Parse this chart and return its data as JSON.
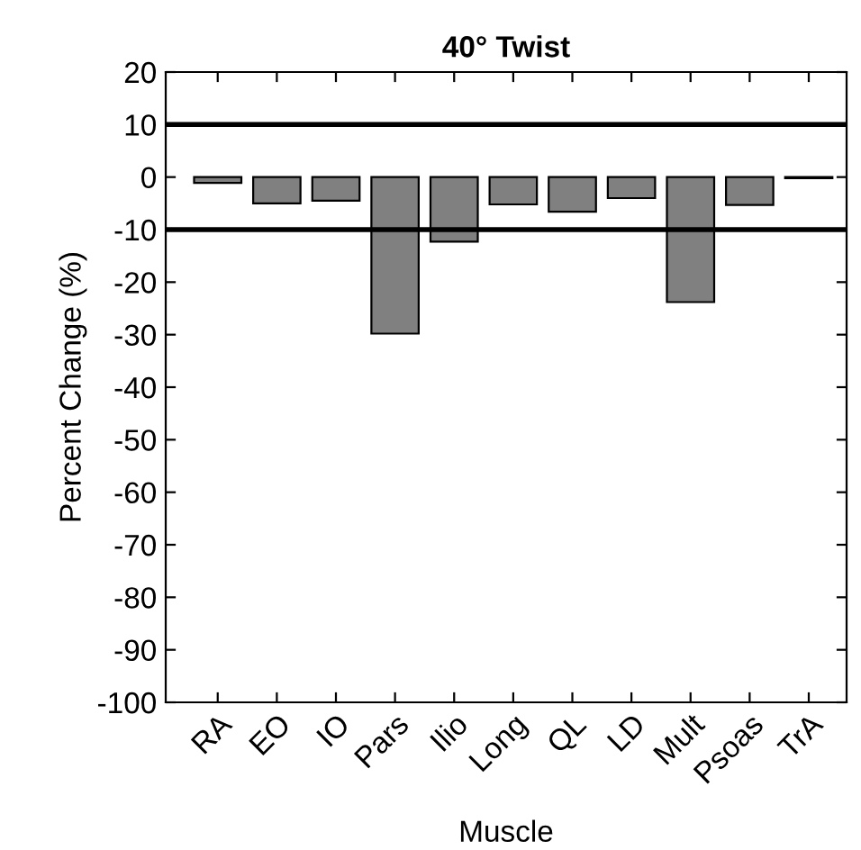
{
  "chart_data": {
    "type": "bar",
    "title": "40° Twist",
    "xlabel": "Muscle",
    "ylabel": "Percent Change (%)",
    "categories": [
      "RA",
      "EO",
      "IO",
      "Pars",
      "Ilio",
      "Long",
      "QL",
      "LD",
      "Mult",
      "Psoas",
      "TrA"
    ],
    "values": [
      -1.1,
      -5,
      -4.5,
      -29.8,
      -12.3,
      -5.2,
      -6.6,
      -4,
      -23.8,
      -5.3,
      -0.2
    ],
    "color": "#808080",
    "ylim": [
      -100,
      20
    ],
    "yticks": [
      -100,
      -90,
      -80,
      -70,
      -60,
      -50,
      -40,
      -30,
      -20,
      -10,
      0,
      10,
      20
    ],
    "ref_lines": [
      {
        "axis": "y",
        "value": 10,
        "color": "#000000"
      },
      {
        "axis": "y",
        "value": -10,
        "color": "#000000"
      }
    ],
    "grid": false,
    "legend": false
  }
}
